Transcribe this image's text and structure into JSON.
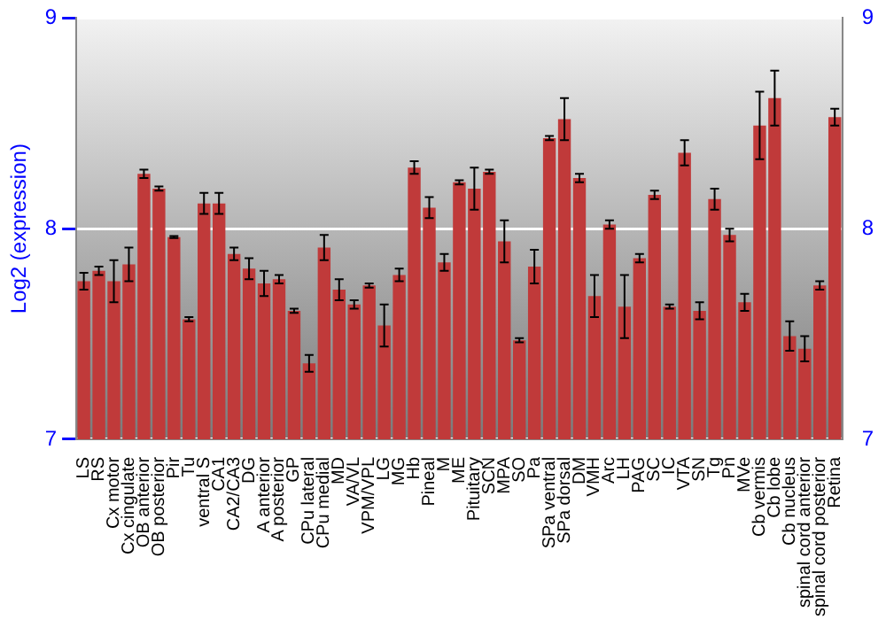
{
  "chart_data": {
    "type": "bar",
    "ylabel": "Log2 (expression)",
    "categories": [
      "LS",
      "RS",
      "Cx motor",
      "Cx cingulate",
      "OB anterior",
      "OB posterior",
      "Pir",
      "Tu",
      "ventral S",
      "CA1",
      "CA2/CA3",
      "DG",
      "A anterior",
      "A posterior",
      "GP",
      "CPu lateral",
      "CPu medial",
      "MD",
      "VA/VL",
      "VPM/VPL",
      "LG",
      "MG",
      "Hb",
      "Pineal",
      "M",
      "ME",
      "Pituitary",
      "SCN",
      "MPA",
      "SO",
      "Pa",
      "SPa ventral",
      "SPa dorsal",
      "DM",
      "VMH",
      "Arc",
      "LH",
      "PAG",
      "SC",
      "IC",
      "VTA",
      "SN",
      "Tg",
      "Pn",
      "MVe",
      "Cb vermis",
      "Cb lobe",
      "Cb nucleus",
      "spinal cord anterior",
      "spinal cord posterior",
      "Retina"
    ],
    "values": [
      7.75,
      7.8,
      7.75,
      7.83,
      8.26,
      8.19,
      7.96,
      7.57,
      8.12,
      8.12,
      7.88,
      7.81,
      7.74,
      7.76,
      7.61,
      7.36,
      7.91,
      7.71,
      7.64,
      7.73,
      7.54,
      7.78,
      8.29,
      8.1,
      7.84,
      8.22,
      8.19,
      8.27,
      7.94,
      7.47,
      7.82,
      8.43,
      8.52,
      8.24,
      7.68,
      8.02,
      7.63,
      7.86,
      8.16,
      7.63,
      8.36,
      7.61,
      8.14,
      7.97,
      7.65,
      8.49,
      8.62,
      7.49,
      7.43,
      7.73,
      8.53
    ],
    "errors": [
      0.04,
      0.02,
      0.1,
      0.08,
      0.02,
      0.01,
      0.005,
      0.01,
      0.05,
      0.05,
      0.03,
      0.05,
      0.06,
      0.02,
      0.01,
      0.04,
      0.06,
      0.05,
      0.02,
      0.01,
      0.1,
      0.03,
      0.03,
      0.05,
      0.04,
      0.01,
      0.1,
      0.01,
      0.1,
      0.01,
      0.08,
      0.01,
      0.1,
      0.02,
      0.1,
      0.02,
      0.15,
      0.02,
      0.02,
      0.01,
      0.06,
      0.04,
      0.05,
      0.03,
      0.04,
      0.16,
      0.13,
      0.07,
      0.06,
      0.02,
      0.04
    ],
    "color": "#c03a3a",
    "ylim": [
      7,
      9
    ],
    "yticks": [
      7,
      8,
      9
    ],
    "y2lim": [
      7,
      9
    ],
    "y2ticks": [
      7,
      8,
      9
    ],
    "grid": "y",
    "legend": false
  }
}
